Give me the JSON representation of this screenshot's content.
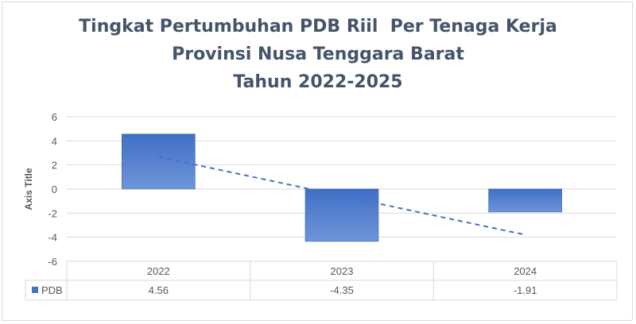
{
  "chart_data": {
    "type": "bar",
    "title_lines": [
      "Tingkat Pertumbuhan PDB Riil  Per Tenaga Kerja",
      "Provinsi Nusa Tenggara Barat",
      "Tahun 2022-2025"
    ],
    "ylabel": "Axis Title",
    "xlabel": "",
    "categories": [
      "2022",
      "2023",
      "2024"
    ],
    "series": [
      {
        "name": "PDB",
        "values": [
          4.56,
          -4.35,
          -1.91
        ],
        "color": "#4472c4"
      }
    ],
    "data_table_values": [
      "4.56",
      "-4.35",
      "-1.91"
    ],
    "ylim": [
      -6,
      6
    ],
    "yticks": [
      6,
      4,
      2,
      0,
      -2,
      -4,
      -6
    ],
    "trendline": {
      "type": "linear",
      "style": "dashed",
      "color": "#4472c4"
    },
    "grid": true,
    "data_table": true,
    "legend": "data table"
  },
  "colors": {
    "title": "#44546a",
    "bar": "#4472c4",
    "grid": "#d9d9d9",
    "text": "#595959"
  }
}
